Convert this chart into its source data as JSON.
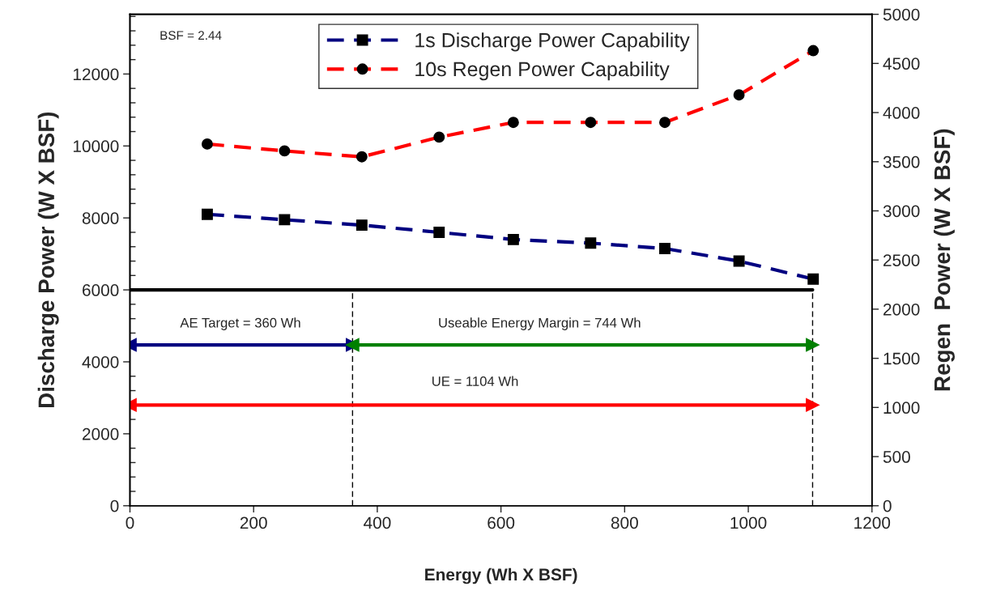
{
  "chart_data": {
    "type": "line",
    "xlabel": "Energy (Wh X BSF)",
    "ylabel": "Discharge Power (W X BSF)",
    "y2label": "Regen  Power (W X BSF)",
    "xlim": [
      0,
      1200
    ],
    "xticks": [
      0,
      200,
      400,
      600,
      800,
      1000,
      1200
    ],
    "ylim": [
      0,
      13660
    ],
    "yticks": [
      0,
      2000,
      4000,
      6000,
      8000,
      10000,
      12000
    ],
    "y2lim": [
      0,
      5000
    ],
    "y2ticks": [
      0,
      500,
      1000,
      1500,
      2000,
      2500,
      3000,
      3500,
      4000,
      4500,
      5000
    ],
    "grid": false,
    "legend": "top",
    "series": [
      {
        "name": "1s Discharge Power Capability",
        "color": "#000080",
        "marker": "square",
        "line_style": "dashed",
        "x": [
          125,
          250,
          375,
          500,
          620,
          745,
          865,
          985,
          1105
        ],
        "values": [
          8100,
          7950,
          7800,
          7600,
          7400,
          7300,
          7150,
          6800,
          6300
        ]
      },
      {
        "name": "10s Regen Power Capability",
        "color": "#ff0000",
        "marker": "circle",
        "line_style": "dashed",
        "axis": "y2",
        "x": [
          125,
          250,
          375,
          500,
          620,
          745,
          865,
          985,
          1105
        ],
        "values": [
          3680,
          3610,
          3550,
          3750,
          3900,
          3900,
          3900,
          4180,
          4630
        ]
      },
      {
        "type": "line",
        "color": "#000000",
        "marker": "none",
        "line_style": "solid",
        "x": [
          0,
          1104
        ],
        "values": [
          6000,
          6000
        ]
      },
      {
        "type": "line",
        "color": "#000000",
        "marker": "none",
        "line_style": "dashed",
        "x": [
          360,
          360
        ],
        "values": [
          0,
          6000
        ]
      },
      {
        "type": "line",
        "color": "#000000",
        "marker": "none",
        "line_style": "dashed",
        "x": [
          1104,
          1104
        ],
        "values": [
          0,
          6000
        ]
      },
      {
        "type": "line",
        "color": "#000080",
        "marker": "triangle",
        "line_style": "solid",
        "x": [
          0,
          360
        ],
        "values": [
          4470,
          4470
        ]
      },
      {
        "type": "line",
        "color": "#008000",
        "marker": "triangle",
        "line_style": "solid",
        "x": [
          360,
          1104
        ],
        "values": [
          4470,
          4470
        ]
      },
      {
        "type": "line",
        "color": "#ff0000",
        "marker": "triangle",
        "line_style": "solid",
        "x": [
          0,
          1104
        ],
        "values": [
          2800,
          2800
        ]
      }
    ],
    "annotations": [
      "BSF = 2.44",
      "AE Target = 360 Wh",
      "Useable Energy Margin = 744 Wh",
      "UE = 1104 Wh"
    ]
  }
}
